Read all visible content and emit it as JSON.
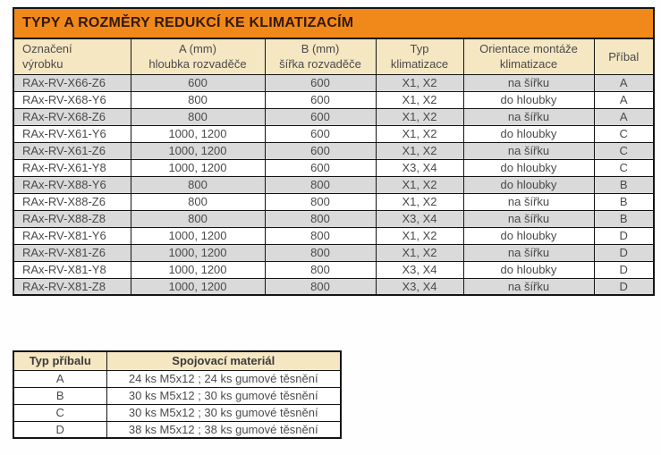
{
  "colors": {
    "title_bg": "#F1891A",
    "title_text": "#33190A",
    "header_bg": "#F6E7C3",
    "stripe_row_bg": "#DADADA",
    "plain_row_bg": "#FFFFFF",
    "border": "#141414",
    "body_text": "#4A4A4A"
  },
  "main_table": {
    "title": "TYPY A ROZMĚRY REDUKCÍ KE KLIMATIZACÍM",
    "columns": [
      "Označení\nvýrobku",
      "A (mm)\nhloubka rozvaděče",
      "B (mm)\nšířka rozvaděče",
      "Typ\nklimatizace",
      "Orientace montáže\nklimatizace",
      "Příbal"
    ],
    "rows": [
      [
        "RAx-RV-X66-Z6",
        "600",
        "600",
        "X1, X2",
        "na šířku",
        "A"
      ],
      [
        "RAx-RV-X68-Y6",
        "800",
        "600",
        "X1, X2",
        "do hloubky",
        "A"
      ],
      [
        "RAx-RV-X68-Z6",
        "800",
        "600",
        "X1, X2",
        "na šířku",
        "A"
      ],
      [
        "RAx-RV-X61-Y6",
        "1000, 1200",
        "600",
        "X1, X2",
        "do hloubky",
        "C"
      ],
      [
        "RAx-RV-X61-Z6",
        "1000, 1200",
        "600",
        "X1, X2",
        "na šířku",
        "C"
      ],
      [
        "RAx-RV-X61-Y8",
        "1000, 1200",
        "600",
        "X3, X4",
        "do hloubky",
        "C"
      ],
      [
        "RAx-RV-X88-Y6",
        "800",
        "800",
        "X1, X2",
        "do hloubky",
        "B"
      ],
      [
        "RAx-RV-X88-Z6",
        "800",
        "800",
        "X1, X2",
        "na šířku",
        "B"
      ],
      [
        "RAx-RV-X88-Z8",
        "800",
        "800",
        "X3, X4",
        "na šířku",
        "B"
      ],
      [
        "RAx-RV-X81-Y6",
        "1000, 1200",
        "800",
        "X1, X2",
        "do hloubky",
        "D"
      ],
      [
        "RAx-RV-X81-Z6",
        "1000, 1200",
        "800",
        "X1, X2",
        "na šířku",
        "D"
      ],
      [
        "RAx-RV-X81-Y8",
        "1000, 1200",
        "800",
        "X3, X4",
        "do hloubky",
        "D"
      ],
      [
        "RAx-RV-X81-Z8",
        "1000, 1200",
        "800",
        "X3, X4",
        "na šířku",
        "D"
      ]
    ]
  },
  "accessory_table": {
    "columns": [
      "Typ příbalu",
      "Spojovací materiál"
    ],
    "rows": [
      [
        "A",
        "24 ks M5x12 ; 24 ks gumové těsnění"
      ],
      [
        "B",
        "30 ks M5x12 ; 30 ks gumové těsnění"
      ],
      [
        "C",
        "30 ks M5x12 ; 30 ks gumové těsnění"
      ],
      [
        "D",
        "38 ks M5x12 ; 38 ks gumové těsnění"
      ]
    ]
  }
}
